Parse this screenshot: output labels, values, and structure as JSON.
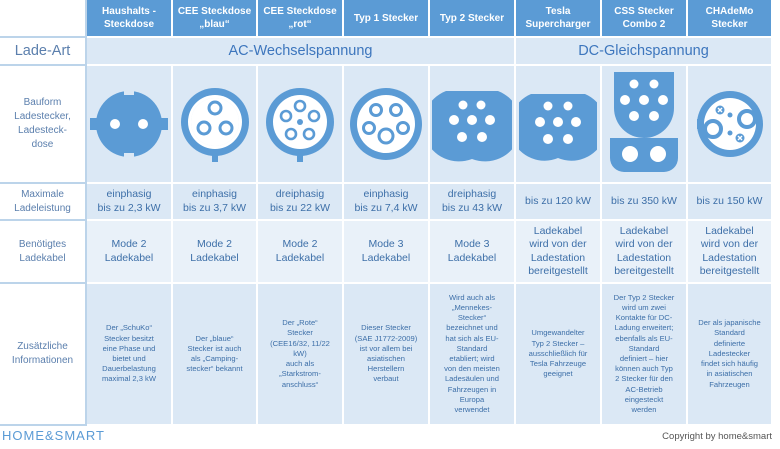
{
  "header": {
    "columns": [
      "Haushalts -\nSteckdose",
      "CEE Steckdose\n„blau“",
      "CEE Steckdose\n„rot“",
      "Typ 1 Stecker",
      "Typ 2 Stecker",
      "Tesla\nSupercharger",
      "CSS Stecker\nCombo 2",
      "CHAdeMo\nStecker"
    ]
  },
  "rows": {
    "lade_art": {
      "label": "Lade-Art",
      "ac": "AC-Wechselspannung",
      "dc": "DC-Gleichspannung"
    },
    "bauform": {
      "label": "Bauform\nLadestecker,\nLadesteck-\ndose"
    },
    "leistung": {
      "label": "Maximale\nLadeleistung",
      "values": [
        "einphasig\nbis zu 2,3 kW",
        "einphasig\nbis zu 3,7 kW",
        "dreiphasig\nbis zu 22 kW",
        "einphasig\nbis zu 7,4 kW",
        "dreiphasig\nbis zu 43 kW",
        "bis zu 120 kW",
        "bis zu 350 kW",
        "bis zu 150 kW"
      ]
    },
    "kabel": {
      "label": "Benötigtes\nLadekabel",
      "values": [
        "Mode 2\nLadekabel",
        "Mode 2\nLadekabel",
        "Mode 2\nLadekabel",
        "Mode 3\nLadekabel",
        "Mode 3\nLadekabel",
        "Ladekabel\nwird von der\nLadestation\nbereitgestellt",
        "Ladekabel\nwird von der\nLadestation\nbereitgestellt",
        "Ladekabel\nwird von der\nLadestation\nbereitgestellt"
      ]
    },
    "info": {
      "label": "Zusätzliche\nInformationen",
      "values": [
        "Der „SchuKo“\nStecker besitzt\neine Phase und\nbietet und\nDauerbelastung\nmaximal 2,3 kW",
        "Der „blaue“\nStecker ist auch\nals „Camping-\nstecker“ bekannt",
        "Der „Rote“\nStecker\n(CEE16/32, 11/22\nkW)\nauch als\n„Starkstrom-\nanschluss“",
        "Dieser Stecker\n(SAE J1772-2009)\nist vor allem bei\nasiatischen\nHerstellern\nverbaut",
        "Wird auch als\n„Mennekes-\nStecker“\nbezeichnet und\nhat sich als EU-\nStandard\netabliert; wird\nvon den meisten\nLadesäulen und\nFahrzeugen in\nEuropa\nverwendet",
        "Umgewandelter\nTyp 2 Stecker –\nausschließlich für\nTesla Fahrzeuge\ngeeignet",
        "Der Typ 2 Stecker\nwird um zwei\nKontakte für DC-\nLadung erweitert;\nebenfalls als EU-\nStandard\ndefiniert – hier\nkönnen auch Typ\n2 Stecker für den\nAC-Betrieb\neingesteckt\nwerden",
        "Der als japanische\nStandard\ndefinierte\nLadestecker\nfindet sich häufig\nin asiatischen\nFahrzeugen"
      ]
    }
  },
  "plug_icons": [
    "schuko-plug-icon",
    "cee-blue-plug-icon",
    "cee-red-plug-icon",
    "type1-plug-icon",
    "type2-plug-icon",
    "tesla-plug-icon",
    "ccs-combo2-plug-icon",
    "chademo-plug-icon"
  ],
  "colors": {
    "header_bg": "#5b9bd5",
    "cell_bg": "#dbe8f5",
    "accent_text": "#3d6fa8",
    "plug_fill": "#5b9bd5"
  },
  "footer": {
    "logo": "HOME&SMART",
    "copyright": "Copyright by home&smart"
  }
}
